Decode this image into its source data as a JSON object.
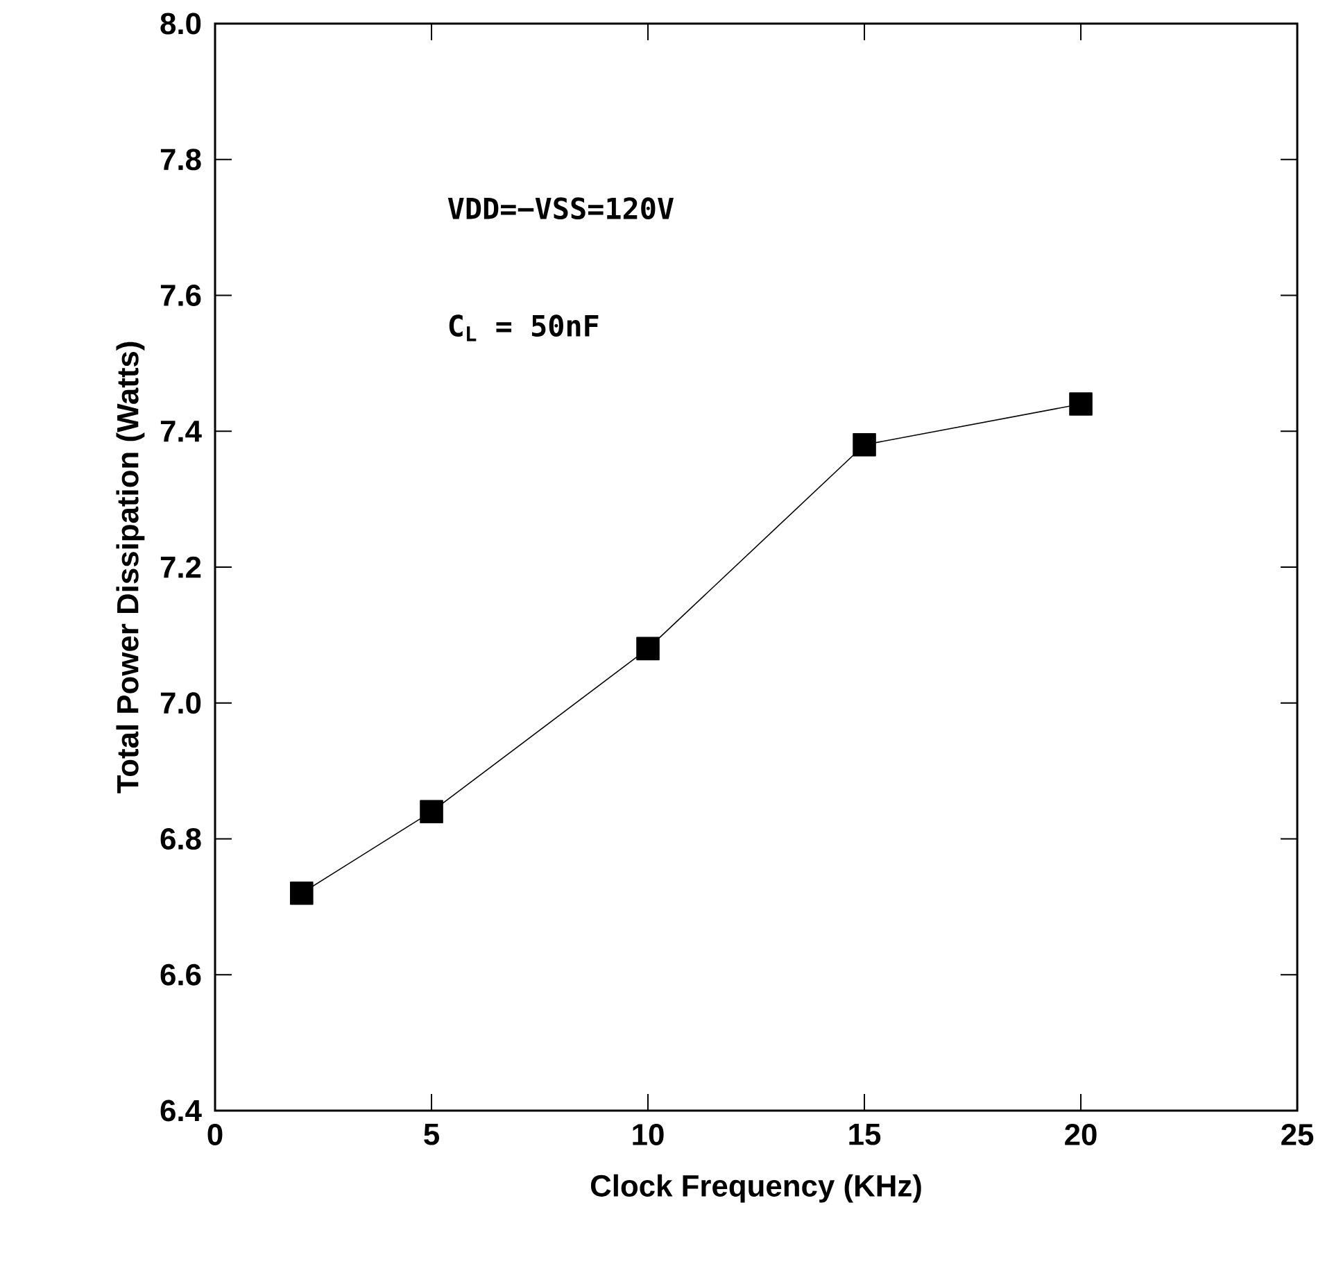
{
  "chart_data": {
    "type": "line",
    "xlabel": "Clock Frequency (KHz)",
    "ylabel": "Total Power Dissipation (Watts)",
    "x": [
      2,
      5,
      10,
      15,
      20
    ],
    "series": [
      {
        "color": "#000000",
        "values": [
          6.72,
          6.84,
          7.08,
          7.38,
          7.44
        ]
      }
    ],
    "xlim": [
      0,
      25
    ],
    "xticks": [
      0,
      5,
      10,
      15,
      20,
      25
    ],
    "ylim": [
      6.4,
      8.0
    ],
    "yticks": [
      {
        "value": 6.4,
        "label": "6.4"
      },
      {
        "value": 6.6,
        "label": "6.6"
      },
      {
        "value": 6.8,
        "label": "6.8"
      },
      {
        "value": 7.0,
        "label": "7.0"
      },
      {
        "value": 7.2,
        "label": "7.2"
      },
      {
        "value": 7.4,
        "label": "7.4"
      },
      {
        "value": 7.6,
        "label": "7.6"
      },
      {
        "value": 7.8,
        "label": "7.8"
      },
      {
        "value": 8.0,
        "label": "8.0"
      }
    ],
    "annotations": [
      "VDD=−VSS=120V",
      "C$_{L}$  = 50nF"
    ],
    "marker": "square",
    "line_style": "solid",
    "grid": false
  }
}
